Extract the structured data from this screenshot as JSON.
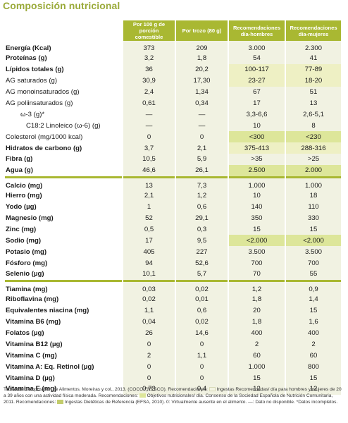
{
  "title": "Composición nutricional",
  "columns": [
    "Por 100 g de porción comestible",
    "Por trozo (80 g)",
    "Recomendaciones día-hombres",
    "Recomendaciones día-mujeres"
  ],
  "rows": [
    {
      "name": "Energía (Kcal)",
      "values": [
        "373",
        "209",
        "3.000",
        "2.300"
      ]
    },
    {
      "name": "Proteínas (g)",
      "values": [
        "3,2",
        "1,8",
        "54",
        "41"
      ]
    },
    {
      "name": "Lípidos totales (g)",
      "values": [
        "36",
        "20,2",
        "100-117",
        "77-89"
      ]
    },
    {
      "name": "AG saturados (g)",
      "values": [
        "30,9",
        "17,30",
        "23-27",
        "18-20"
      ]
    },
    {
      "name": "AG monoinsaturados (g)",
      "values": [
        "2,4",
        "1,34",
        "67",
        "51"
      ]
    },
    {
      "name": "AG poliinsaturados (g)",
      "values": [
        "0,61",
        "0,34",
        "17",
        "13"
      ]
    },
    {
      "name": "ω-3 (g)*",
      "values": [
        "—",
        "—",
        "3,3-6,6",
        "2,6-5,1"
      ]
    },
    {
      "name": "C18:2 Linoleico (ω-6) (g)",
      "values": [
        "—",
        "—",
        "10",
        "8"
      ]
    },
    {
      "name": "Colesterol (mg/1000 kcal)",
      "values": [
        "0",
        "0",
        "<300",
        "<230"
      ]
    },
    {
      "name": "Hidratos de carbono (g)",
      "values": [
        "3,7",
        "2,1",
        "375-413",
        "288-316"
      ]
    },
    {
      "name": "Fibra (g)",
      "values": [
        "10,5",
        "5,9",
        ">35",
        ">25"
      ]
    },
    {
      "name": "Agua (g)",
      "values": [
        "46,6",
        "26,1",
        "2.500",
        "2.000"
      ]
    },
    {
      "name": "Calcio (mg)",
      "values": [
        "13",
        "7,3",
        "1.000",
        "1.000"
      ]
    },
    {
      "name": "Hierro (mg)",
      "values": [
        "2,1",
        "1,2",
        "10",
        "18"
      ]
    },
    {
      "name": "Yodo (µg)",
      "values": [
        "1",
        "0,6",
        "140",
        "110"
      ]
    },
    {
      "name": "Magnesio (mg)",
      "values": [
        "52",
        "29,1",
        "350",
        "330"
      ]
    },
    {
      "name": "Zinc (mg)",
      "values": [
        "0,5",
        "0,3",
        "15",
        "15"
      ]
    },
    {
      "name": "Sodio (mg)",
      "values": [
        "17",
        "9,5",
        "<2.000",
        "<2.000"
      ]
    },
    {
      "name": "Potasio (mg)",
      "values": [
        "405",
        "227",
        "3.500",
        "3.500"
      ]
    },
    {
      "name": "Fósforo (mg)",
      "values": [
        "94",
        "52,6",
        "700",
        "700"
      ]
    },
    {
      "name": "Selenio (µg)",
      "values": [
        "10,1",
        "5,7",
        "70",
        "55"
      ]
    },
    {
      "name": "Tiamina (mg)",
      "values": [
        "0,03",
        "0,02",
        "1,2",
        "0,9"
      ]
    },
    {
      "name": "Riboflavina (mg)",
      "values": [
        "0,02",
        "0,01",
        "1,8",
        "1,4"
      ]
    },
    {
      "name": "Equivalentes niacina (mg)",
      "values": [
        "1,1",
        "0,6",
        "20",
        "15"
      ]
    },
    {
      "name": "Vitamina B6 (mg)",
      "values": [
        "0,04",
        "0,02",
        "1,8",
        "1,6"
      ]
    },
    {
      "name": "Folatos (µg)",
      "values": [
        "26",
        "14,6",
        "400",
        "400"
      ]
    },
    {
      "name": "Vitamina B12 (µg)",
      "values": [
        "0",
        "0",
        "2",
        "2"
      ]
    },
    {
      "name": "Vitamina C (mg)",
      "values": [
        "2",
        "1,1",
        "60",
        "60"
      ]
    },
    {
      "name": "Vitamina A: Eq. Retinol (µg)",
      "values": [
        "0",
        "0",
        "1.000",
        "800"
      ]
    },
    {
      "name": "Vitamina D (µg)",
      "values": [
        "0",
        "0",
        "15",
        "15"
      ]
    },
    {
      "name": "Vitamina E (mg)",
      "values": [
        "0,73",
        "0,4",
        "12",
        "12"
      ]
    }
  ],
  "footnote": {
    "part1": "Tablas de Composición de Alimentos. Moreiras y col., 2013. (COCO FRESCO). Recomendaciones:",
    "part2": "Ingestas Recomendadas/ día para hombres y mujeres de 20 a 39 años con una actividad física moderada. Recomendaciones:",
    "part3": "Objetivos nutricionales/ día. Consenso de la Sociedad Española de Nutrición Comunitaria, 2011. Recomendaciones:",
    "part4": "Ingestas Dietéticas de Referencia (EFSA, 2010). 0: Virtualmente ausente en el alimento. —: Dato no disponible. *Datos incompletos."
  },
  "colors": {
    "accent": "#a9b832",
    "title": "#9aaa3a",
    "cell_bg": "#f1f2e2",
    "highlight_bg": "#dde69a"
  }
}
